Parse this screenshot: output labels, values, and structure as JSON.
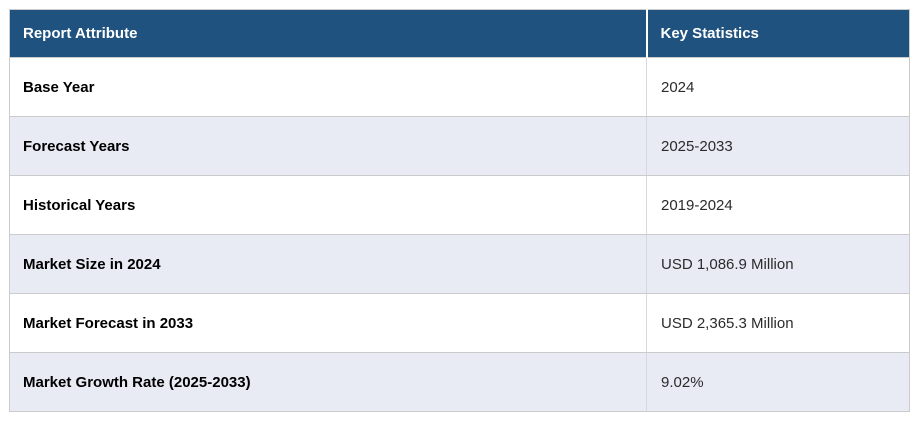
{
  "chart_data": {
    "type": "table",
    "title": "Report key statistics table",
    "columns": [
      "Report Attribute",
      "Key Statistics"
    ],
    "rows": [
      [
        "Base Year",
        "2024"
      ],
      [
        "Forecast Years",
        "2025-2033"
      ],
      [
        "Historical Years",
        "2019-2024"
      ],
      [
        "Market Size in 2024",
        "USD 1,086.9 Million"
      ],
      [
        "Market Forecast in 2033",
        "USD 2,365.3 Million"
      ],
      [
        "Market Growth Rate (2025-2033)",
        "9.02%"
      ]
    ]
  },
  "colors": {
    "header_bg": "#1f527e",
    "header_text": "#ffffff",
    "row_bg": "#ffffff",
    "row_alt_bg": "#e8eaf4",
    "border": "#cbcbce",
    "attribute_text": "#000000",
    "value_text": "#2b2b2b"
  }
}
